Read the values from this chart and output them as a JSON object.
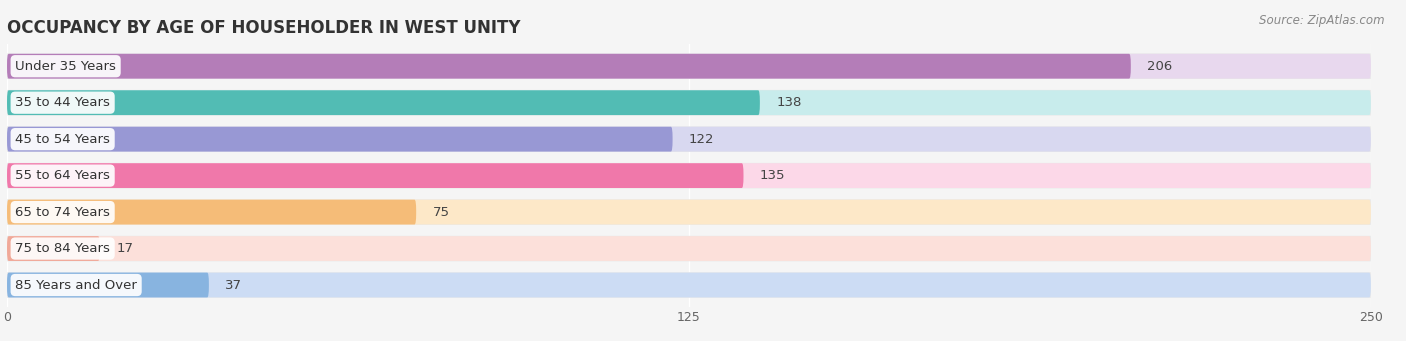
{
  "title": "OCCUPANCY BY AGE OF HOUSEHOLDER IN WEST UNITY",
  "source": "Source: ZipAtlas.com",
  "categories": [
    "Under 35 Years",
    "35 to 44 Years",
    "45 to 54 Years",
    "55 to 64 Years",
    "65 to 74 Years",
    "75 to 84 Years",
    "85 Years and Over"
  ],
  "values": [
    206,
    138,
    122,
    135,
    75,
    17,
    37
  ],
  "bar_colors": [
    "#b47db8",
    "#52bcb4",
    "#9898d4",
    "#f078aa",
    "#f5bc78",
    "#f0a898",
    "#88b4e0"
  ],
  "bar_bg_colors": [
    "#e8d8ee",
    "#c8ecec",
    "#d8d8f0",
    "#fcd8e8",
    "#fde8c8",
    "#fce0da",
    "#ccdcf4"
  ],
  "row_bg_color": "#e8e8e8",
  "xlim": [
    0,
    250
  ],
  "xticks": [
    0,
    125,
    250
  ],
  "bg_color": "#f5f5f5",
  "title_fontsize": 12,
  "label_fontsize": 9.5,
  "value_fontsize": 9.5,
  "source_fontsize": 8.5
}
